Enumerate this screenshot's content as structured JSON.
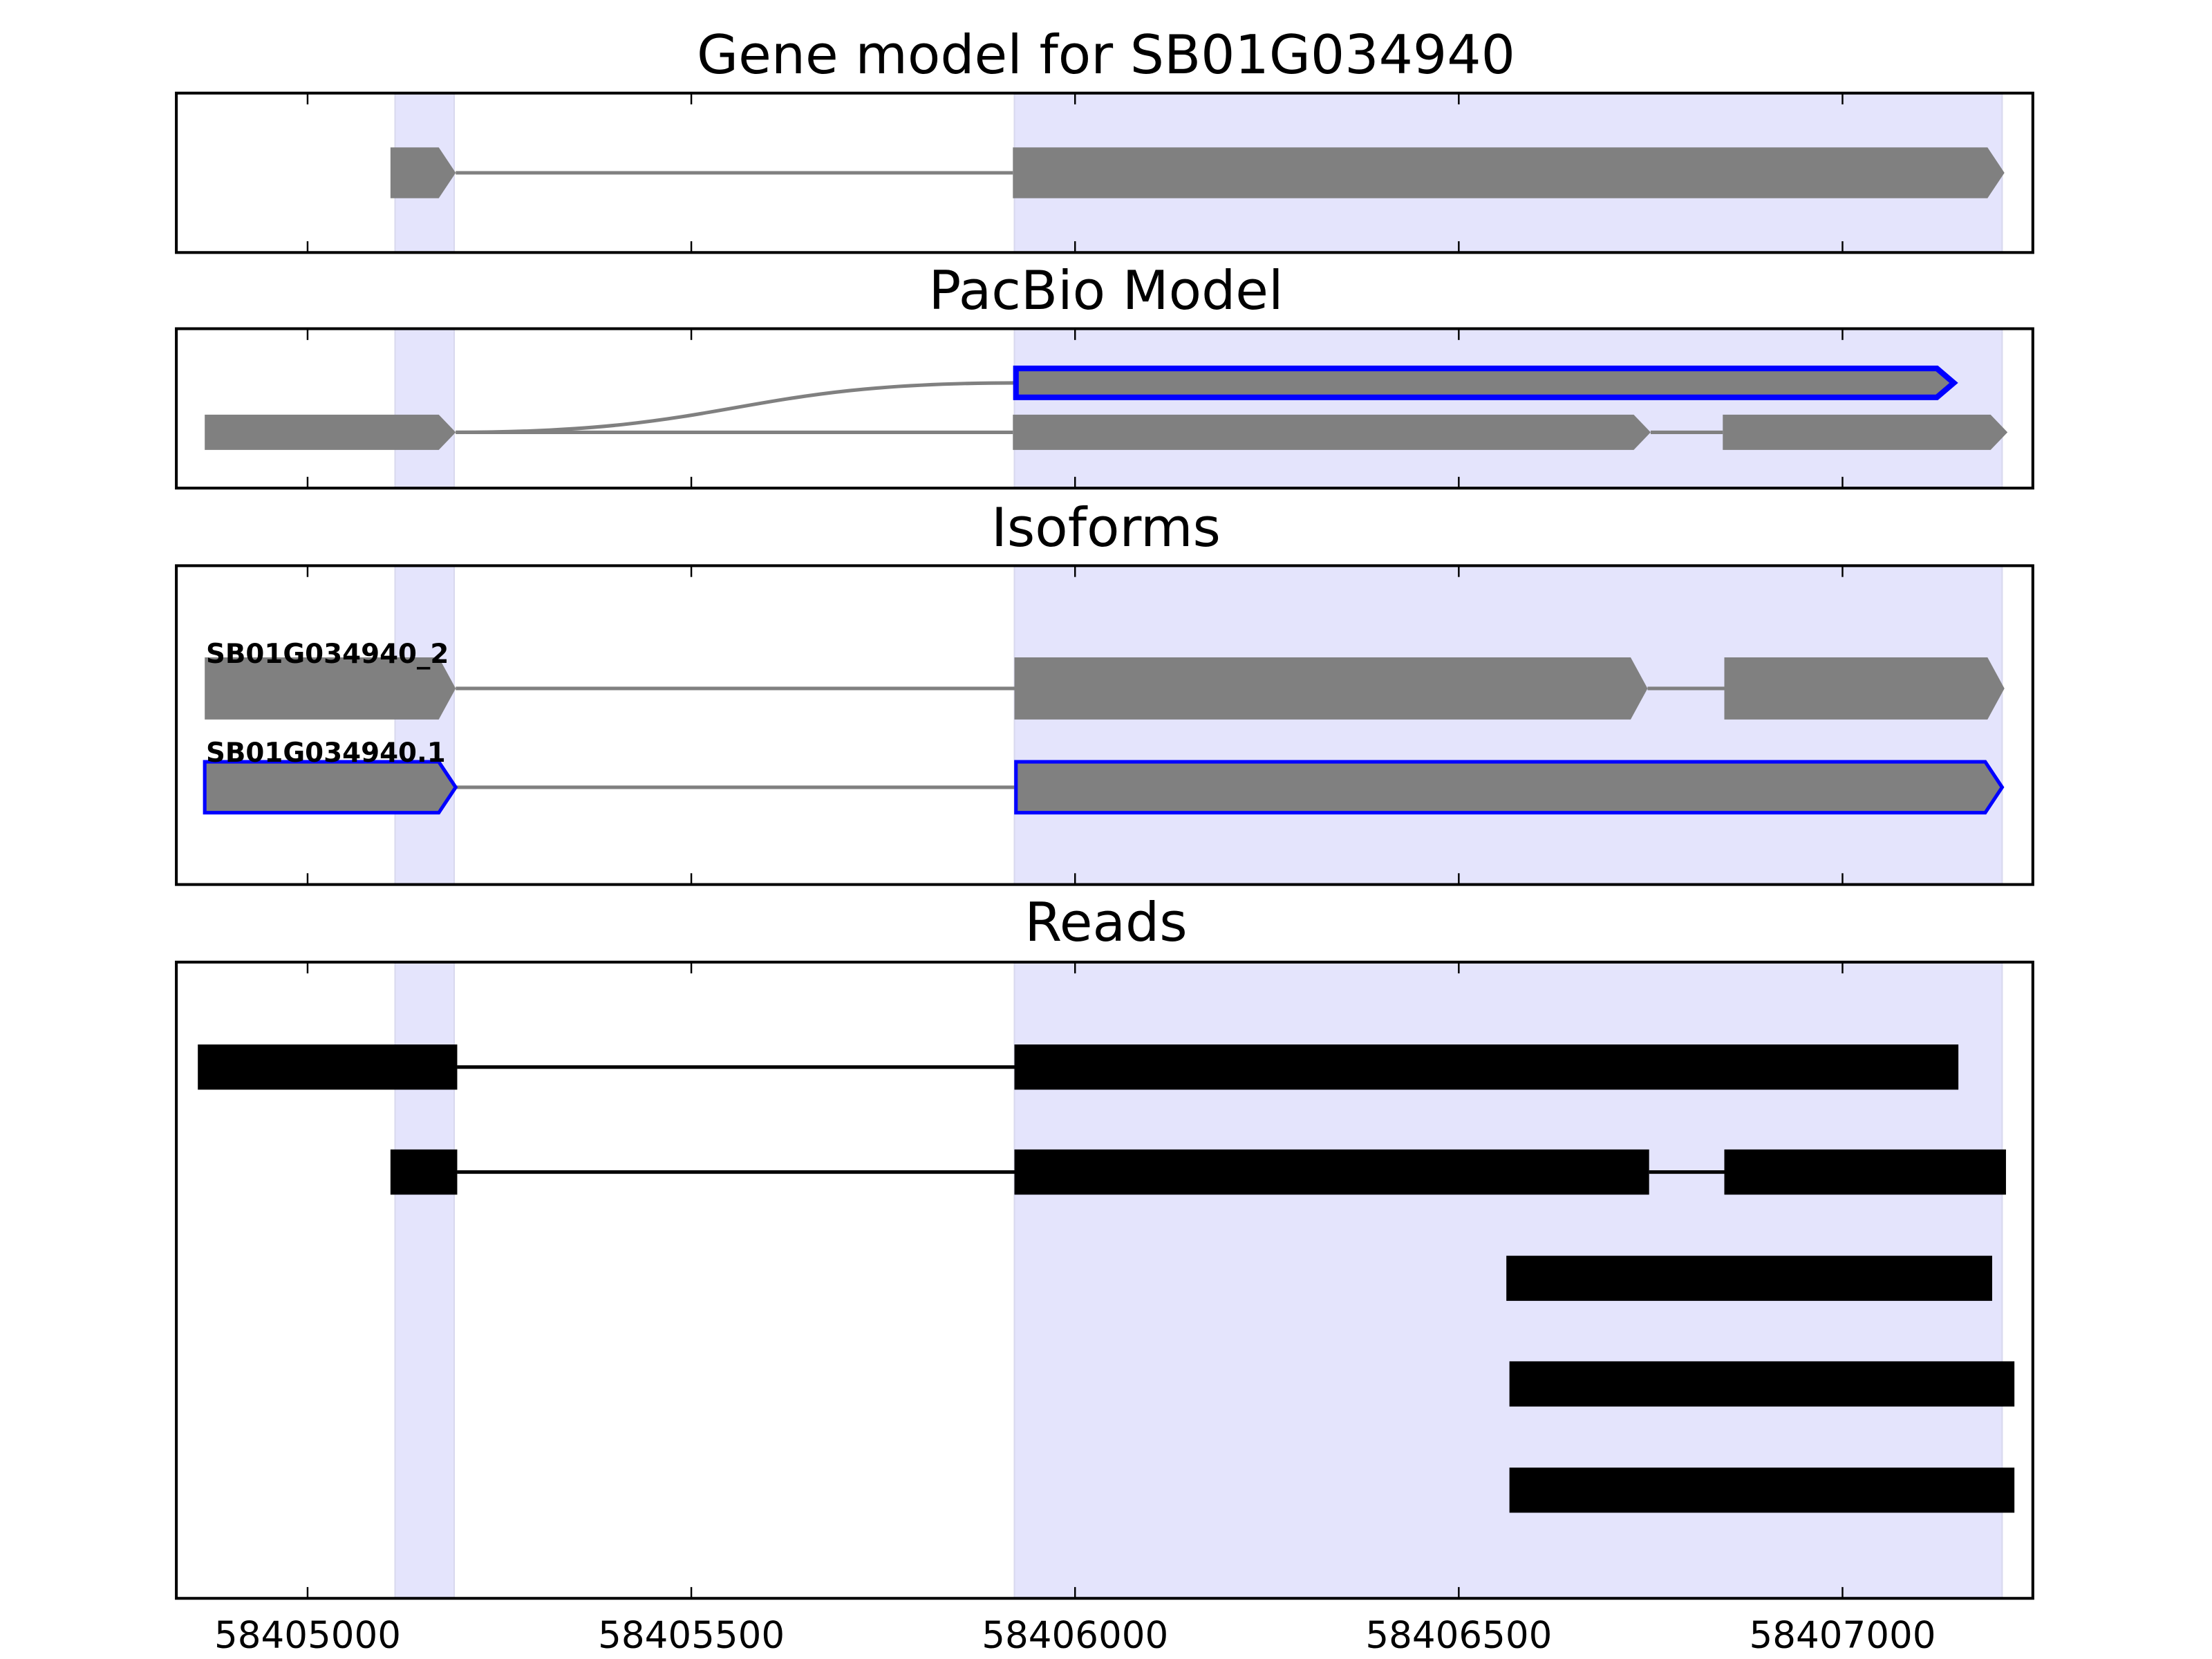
{
  "chart_data": {
    "type": "gene-track",
    "xlim": [
      58404829,
      58407248
    ],
    "xticks": [
      58405000,
      58405500,
      58406000,
      58406500,
      58407000
    ],
    "xtick_labels": [
      "58405000",
      "58405500",
      "58406000",
      "58406500",
      "58407000"
    ],
    "highlight_color": "#e4e4fc",
    "highlights": [
      [
        58405114,
        58405191
      ],
      [
        58405921,
        58407208
      ]
    ],
    "panels": [
      {
        "title": "Gene model for SB01G034940",
        "tracks": [
          {
            "label": "",
            "exons": [
              [
                58405108,
                58405193
              ],
              [
                58405919,
                58407211
              ]
            ],
            "fill": "#808080",
            "edge": "",
            "arrow": true,
            "row": 0.5
          }
        ]
      },
      {
        "title": "PacBio Model",
        "tracks": [
          {
            "label": "",
            "exons": [
              [
                58405923,
                58407145
              ]
            ],
            "fill": "#808080",
            "edge": "#0000ff",
            "arrow": true,
            "row": 0.34,
            "curve_from": 58405193
          },
          {
            "label": "",
            "exons": [
              [
                58404866,
                58405193
              ],
              [
                58405919,
                58406750
              ],
              [
                58406844,
                58407215
              ]
            ],
            "fill": "#808080",
            "edge": "",
            "arrow": true,
            "row": 0.65
          }
        ]
      },
      {
        "title": "Isoforms",
        "tracks": [
          {
            "label": "SB01G034940_2",
            "exons": [
              [
                58404866,
                58405193
              ],
              [
                58405921,
                58406746
              ],
              [
                58406846,
                58407211
              ]
            ],
            "fill": "#808080",
            "edge": "",
            "arrow": true,
            "row": 0.385
          },
          {
            "label": "SB01G034940.1",
            "exons": [
              [
                58404866,
                58405193
              ],
              [
                58405923,
                58407208
              ]
            ],
            "fill": "#808080",
            "edge": "#0000ff",
            "arrow": true,
            "row": 0.695
          }
        ]
      },
      {
        "title": "Reads",
        "tracks": [
          {
            "label": "",
            "exons": [
              [
                58404857,
                58405195
              ],
              [
                58405921,
                58407151
              ]
            ],
            "fill": "#000000",
            "edge": "",
            "arrow": false,
            "row": 0.165
          },
          {
            "label": "",
            "exons": [
              [
                58405108,
                58405195
              ],
              [
                58405921,
                58406748
              ],
              [
                58406846,
                58407213
              ]
            ],
            "fill": "#000000",
            "edge": "",
            "arrow": false,
            "row": 0.33
          },
          {
            "label": "",
            "exons": [
              [
                58406562,
                58407195
              ]
            ],
            "fill": "#000000",
            "edge": "",
            "arrow": false,
            "row": 0.497
          },
          {
            "label": "",
            "exons": [
              [
                58406566,
                58407224
              ]
            ],
            "fill": "#000000",
            "edge": "",
            "arrow": false,
            "row": 0.663
          },
          {
            "label": "",
            "exons": [
              [
                58406566,
                58407224
              ]
            ],
            "fill": "#000000",
            "edge": "",
            "arrow": false,
            "row": 0.83
          }
        ]
      }
    ]
  }
}
